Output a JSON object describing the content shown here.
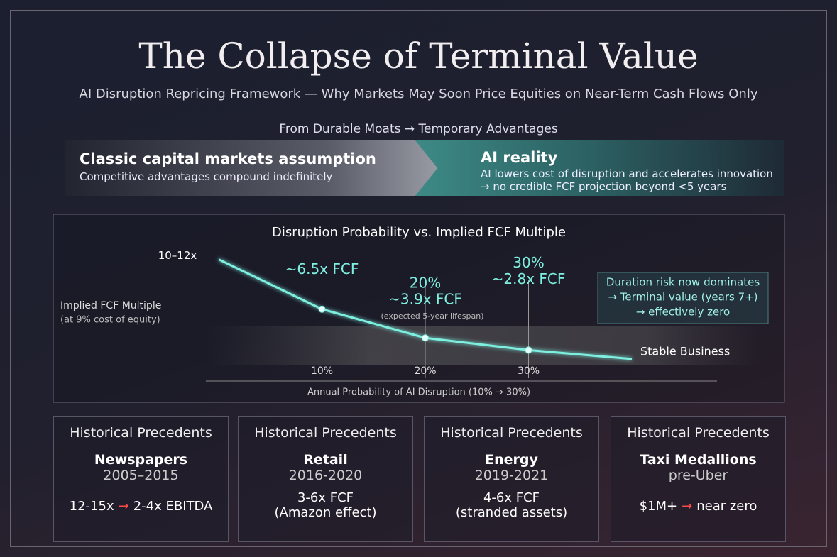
{
  "header": {
    "title": "The Collapse of Terminal Value",
    "subtitle": "AI Disruption Repricing Framework — Why Markets May Soon Price Equities on Near-Term Cash Flows Only"
  },
  "banner": {
    "heading": "From Durable Moats → Temporary Advantages",
    "left": {
      "title": "Classic capital markets assumption",
      "text": "Competitive advantages compound indefinitely"
    },
    "right": {
      "title": "AI reality",
      "lines": [
        "AI lowers cost of disruption and accelerates innovation",
        "→ no credible FCF projection beyond <5 years"
      ]
    }
  },
  "chart_data": {
    "type": "line",
    "title": "Disruption Probability vs. Implied FCF Multiple",
    "x_label": "Annual Probability of AI Disruption (10% → 30%)",
    "y_label": "Implied FCF Multiple",
    "y_sublabel": "(at 9% cost of equity)",
    "x": [
      0,
      10,
      20,
      30,
      40
    ],
    "values": [
      11,
      6.5,
      3.9,
      2.8,
      2
    ],
    "value_labels": [
      "10–12x",
      "~6.5x FCF",
      "~3.9x FCF",
      "~2.8x FCF",
      null
    ],
    "point_titles": [
      null,
      null,
      "20%",
      "30%",
      null
    ],
    "point_note": "(expected 5-year lifespan)",
    "end_label": "Stable Business",
    "color": "#7ef0e0",
    "xlim": [
      0,
      40
    ],
    "ylim": [
      0,
      12
    ],
    "xticks": [
      {
        "value": 10,
        "label": "10%"
      },
      {
        "value": 20,
        "label": "20%"
      },
      {
        "value": 30,
        "label": "30%"
      }
    ],
    "callout": [
      "Duration risk now dominates",
      "→ Terminal value (years 7+)",
      "→ effectively zero"
    ]
  },
  "precedents": [
    {
      "title": "Historical Precedents",
      "name": "Newspapers",
      "period": "2005–2015",
      "result_parts": [
        "12-15x",
        "→",
        "2-4x EBITDA"
      ]
    },
    {
      "title": "Historical Precedents",
      "name": "Retail",
      "period": "2016-2020",
      "result_lines": [
        "3-6x FCF",
        "(Amazon effect)"
      ]
    },
    {
      "title": "Historical Precedents",
      "name": "Energy",
      "period": "2019-2021",
      "result_lines": [
        "4-6x FCF",
        "(stranded assets)"
      ]
    },
    {
      "title": "Historical Precedents",
      "name": "Taxi Medallions",
      "period": "pre-Uber",
      "result_parts": [
        "$1M+",
        "→",
        "near zero"
      ]
    }
  ]
}
